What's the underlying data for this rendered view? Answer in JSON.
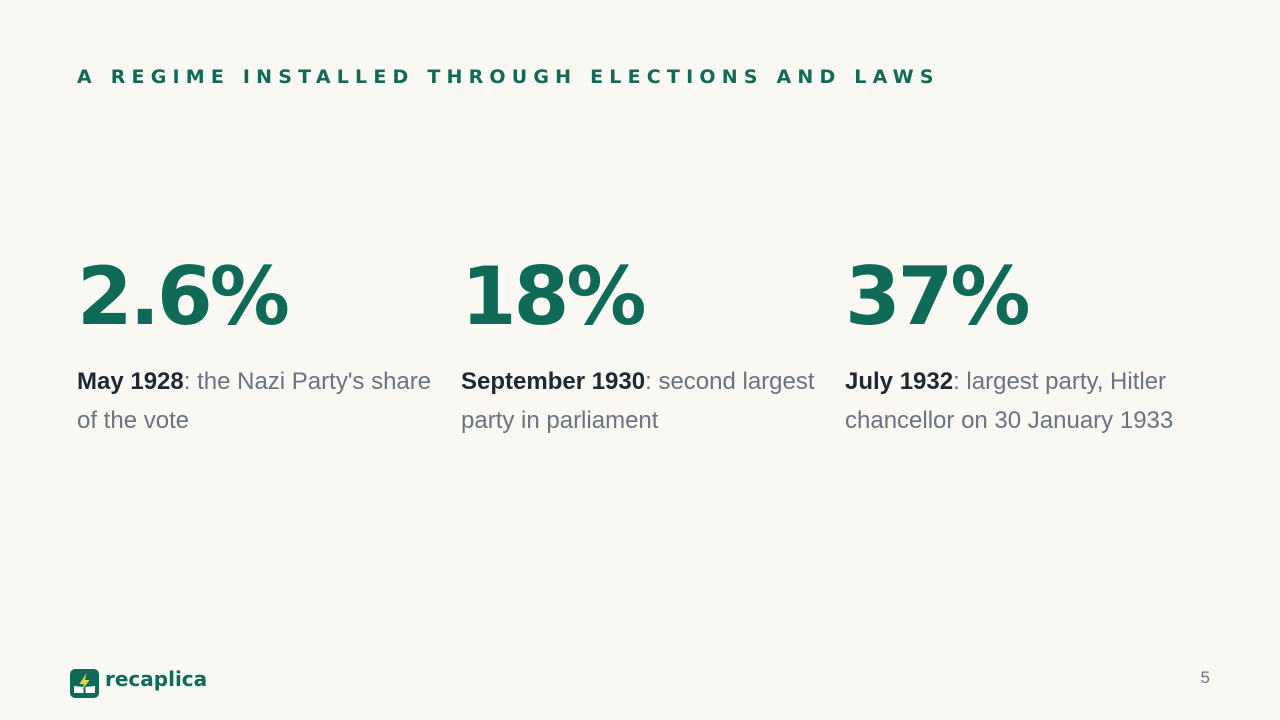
{
  "slide": {
    "eyebrow": "A REGIME INSTALLED THROUGH ELECTIONS AND LAWS",
    "page_number": "5"
  },
  "stats": [
    {
      "value": "2.6%",
      "lead": "May 1928",
      "text": ": the Nazi Party's share of the vote"
    },
    {
      "value": "18%",
      "lead": "September 1930",
      "text": ": second largest party in parliament"
    },
    {
      "value": "37%",
      "lead": "July 1932",
      "text": ": largest party, Hitler chancellor on 30 January 1933"
    }
  ],
  "brand": {
    "name": "recaplica",
    "icon": "lightning-book-icon"
  },
  "colors": {
    "accent": "#0f6b57",
    "background": "#f9f8f3",
    "muted_text": "#6b7280",
    "strong_text": "#1f2933",
    "logo_bolt": "#f4d23c"
  }
}
